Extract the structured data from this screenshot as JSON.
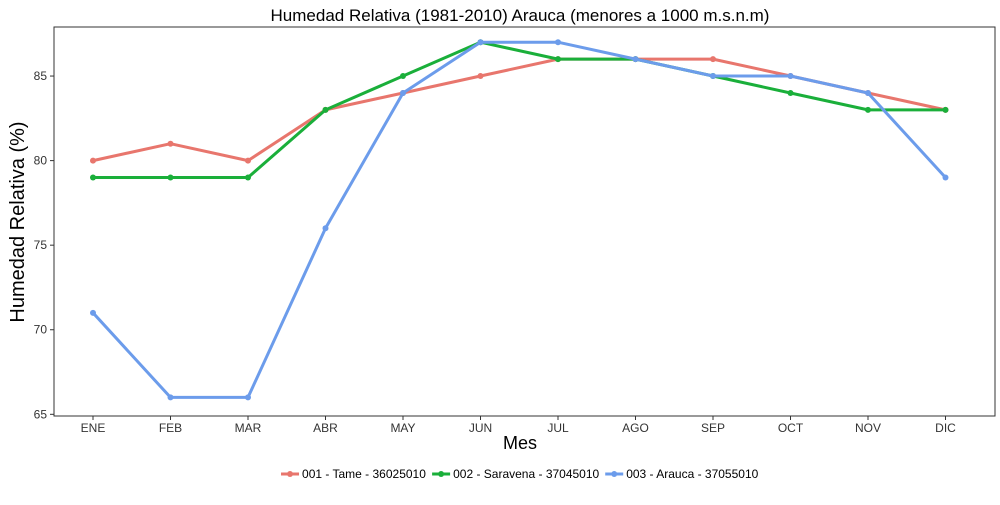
{
  "chart_data": {
    "type": "line",
    "title": "Humedad Relativa (1981-2010) Arauca (menores a 1000 m.s.n.m)",
    "xlabel": "Mes",
    "ylabel": "Humedad Relativa (%)",
    "categories": [
      "ENE",
      "FEB",
      "MAR",
      "ABR",
      "MAY",
      "JUN",
      "JUL",
      "AGO",
      "SEP",
      "OCT",
      "NOV",
      "DIC"
    ],
    "ylim": [
      64.9,
      87.9
    ],
    "yticks": [
      65,
      70,
      75,
      80,
      85
    ],
    "ytick_labels": [
      "65",
      "70",
      "75",
      "80",
      "85"
    ],
    "grid": false,
    "legend_position": "bottom",
    "series": [
      {
        "name": "001 - Tame - 36025010",
        "color": "#E8766D",
        "values": [
          80,
          81,
          80,
          83,
          84,
          85,
          86,
          86,
          86,
          85,
          84,
          83
        ]
      },
      {
        "name": "002 - Saravena - 37045010",
        "color": "#1AAF3A",
        "values": [
          79,
          79,
          79,
          83,
          85,
          87,
          86,
          86,
          85,
          84,
          83,
          83
        ]
      },
      {
        "name": "003 - Arauca - 37055010",
        "color": "#6C9CEB",
        "values": [
          71,
          66,
          66,
          76,
          84,
          87,
          87,
          86,
          85,
          85,
          84,
          79
        ]
      }
    ]
  }
}
